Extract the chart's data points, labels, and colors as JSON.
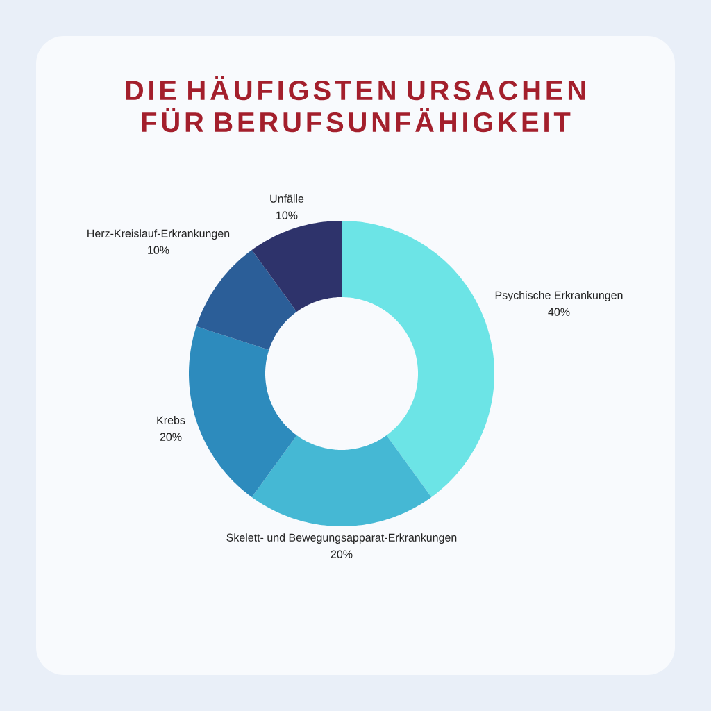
{
  "chart_data": {
    "type": "donut",
    "title": "DIE HÄUFIGSTEN URSACHEN FÜR BERUFSUNFÄHIGKEIT",
    "categories": [
      "Psychische Erkrankungen",
      "Skelett- und Bewegungsapparat-Erkrankungen",
      "Krebs",
      "Herz-Kreislauf-Erkrankungen",
      "Unfälle"
    ],
    "values": [
      40,
      20,
      20,
      10,
      10
    ],
    "value_labels": [
      "40%",
      "20%",
      "20%",
      "10%",
      "10%"
    ],
    "colors": [
      "#6ce4e6",
      "#45b8d4",
      "#2d8bbd",
      "#2b5e98",
      "#2e336b"
    ]
  }
}
